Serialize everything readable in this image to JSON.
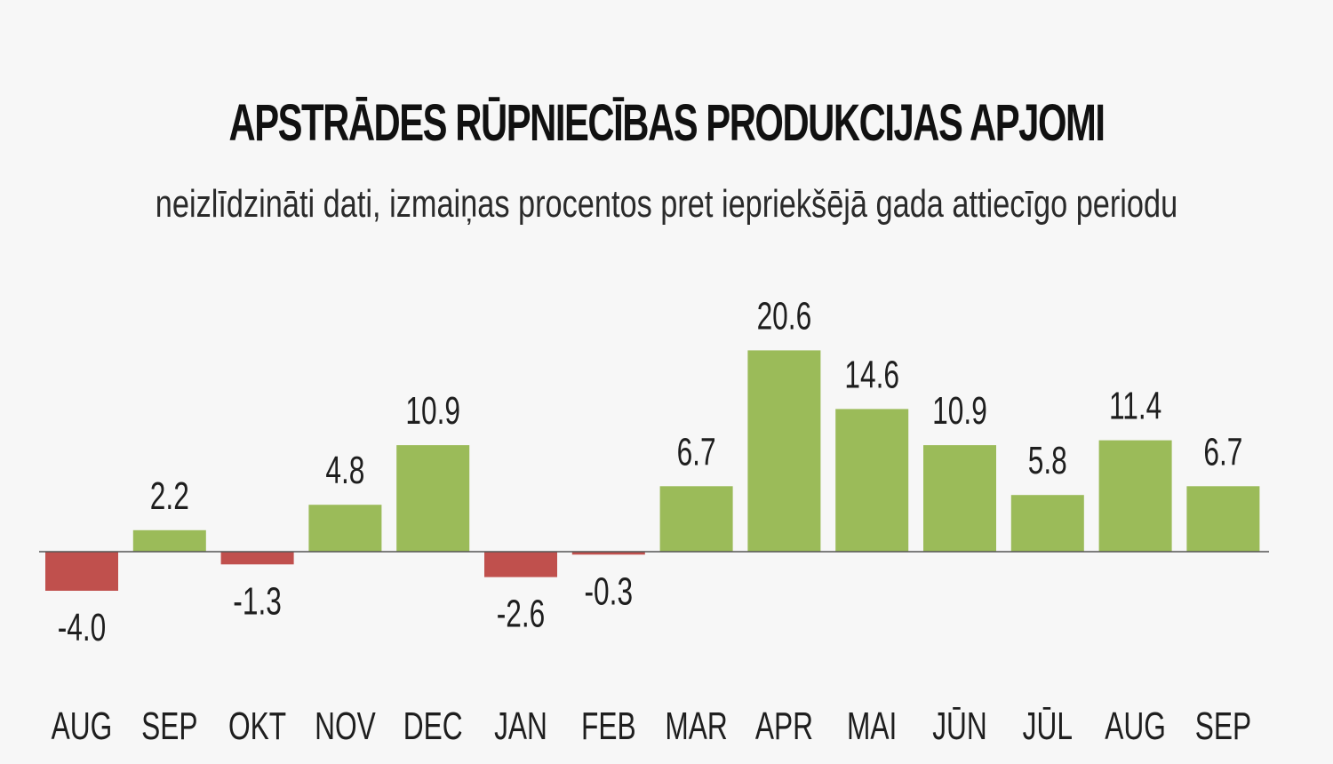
{
  "chart_data": {
    "type": "bar",
    "title": "APSTRĀDES RŪPNIECĪBAS PRODUKCIJAS APJOMI",
    "subtitle": "neizlīdzināti dati, izmaiņas procentos pret iepriekšējā gada attiecīgo periodu",
    "categories": [
      "AUG",
      "SEP",
      "OKT",
      "NOV",
      "DEC",
      "JAN",
      "FEB",
      "MAR",
      "APR",
      "MAI",
      "JŪN",
      "JŪL",
      "AUG",
      "SEP"
    ],
    "values": [
      -4.0,
      2.2,
      -1.3,
      4.8,
      10.9,
      -2.6,
      -0.3,
      6.7,
      20.6,
      14.6,
      10.9,
      5.8,
      11.4,
      6.7
    ],
    "value_labels": [
      "-4.0",
      "2.2",
      "-1.3",
      "4.8",
      "10.9",
      "-2.6",
      "-0.3",
      "6.7",
      "20.6",
      "14.6",
      "10.9",
      "5.8",
      "11.4",
      "6.7"
    ],
    "xlabel": "",
    "ylabel": "",
    "grid": false,
    "colors": {
      "positive": "#9bbb59",
      "negative": "#c0504d",
      "axis": "#555555"
    }
  }
}
